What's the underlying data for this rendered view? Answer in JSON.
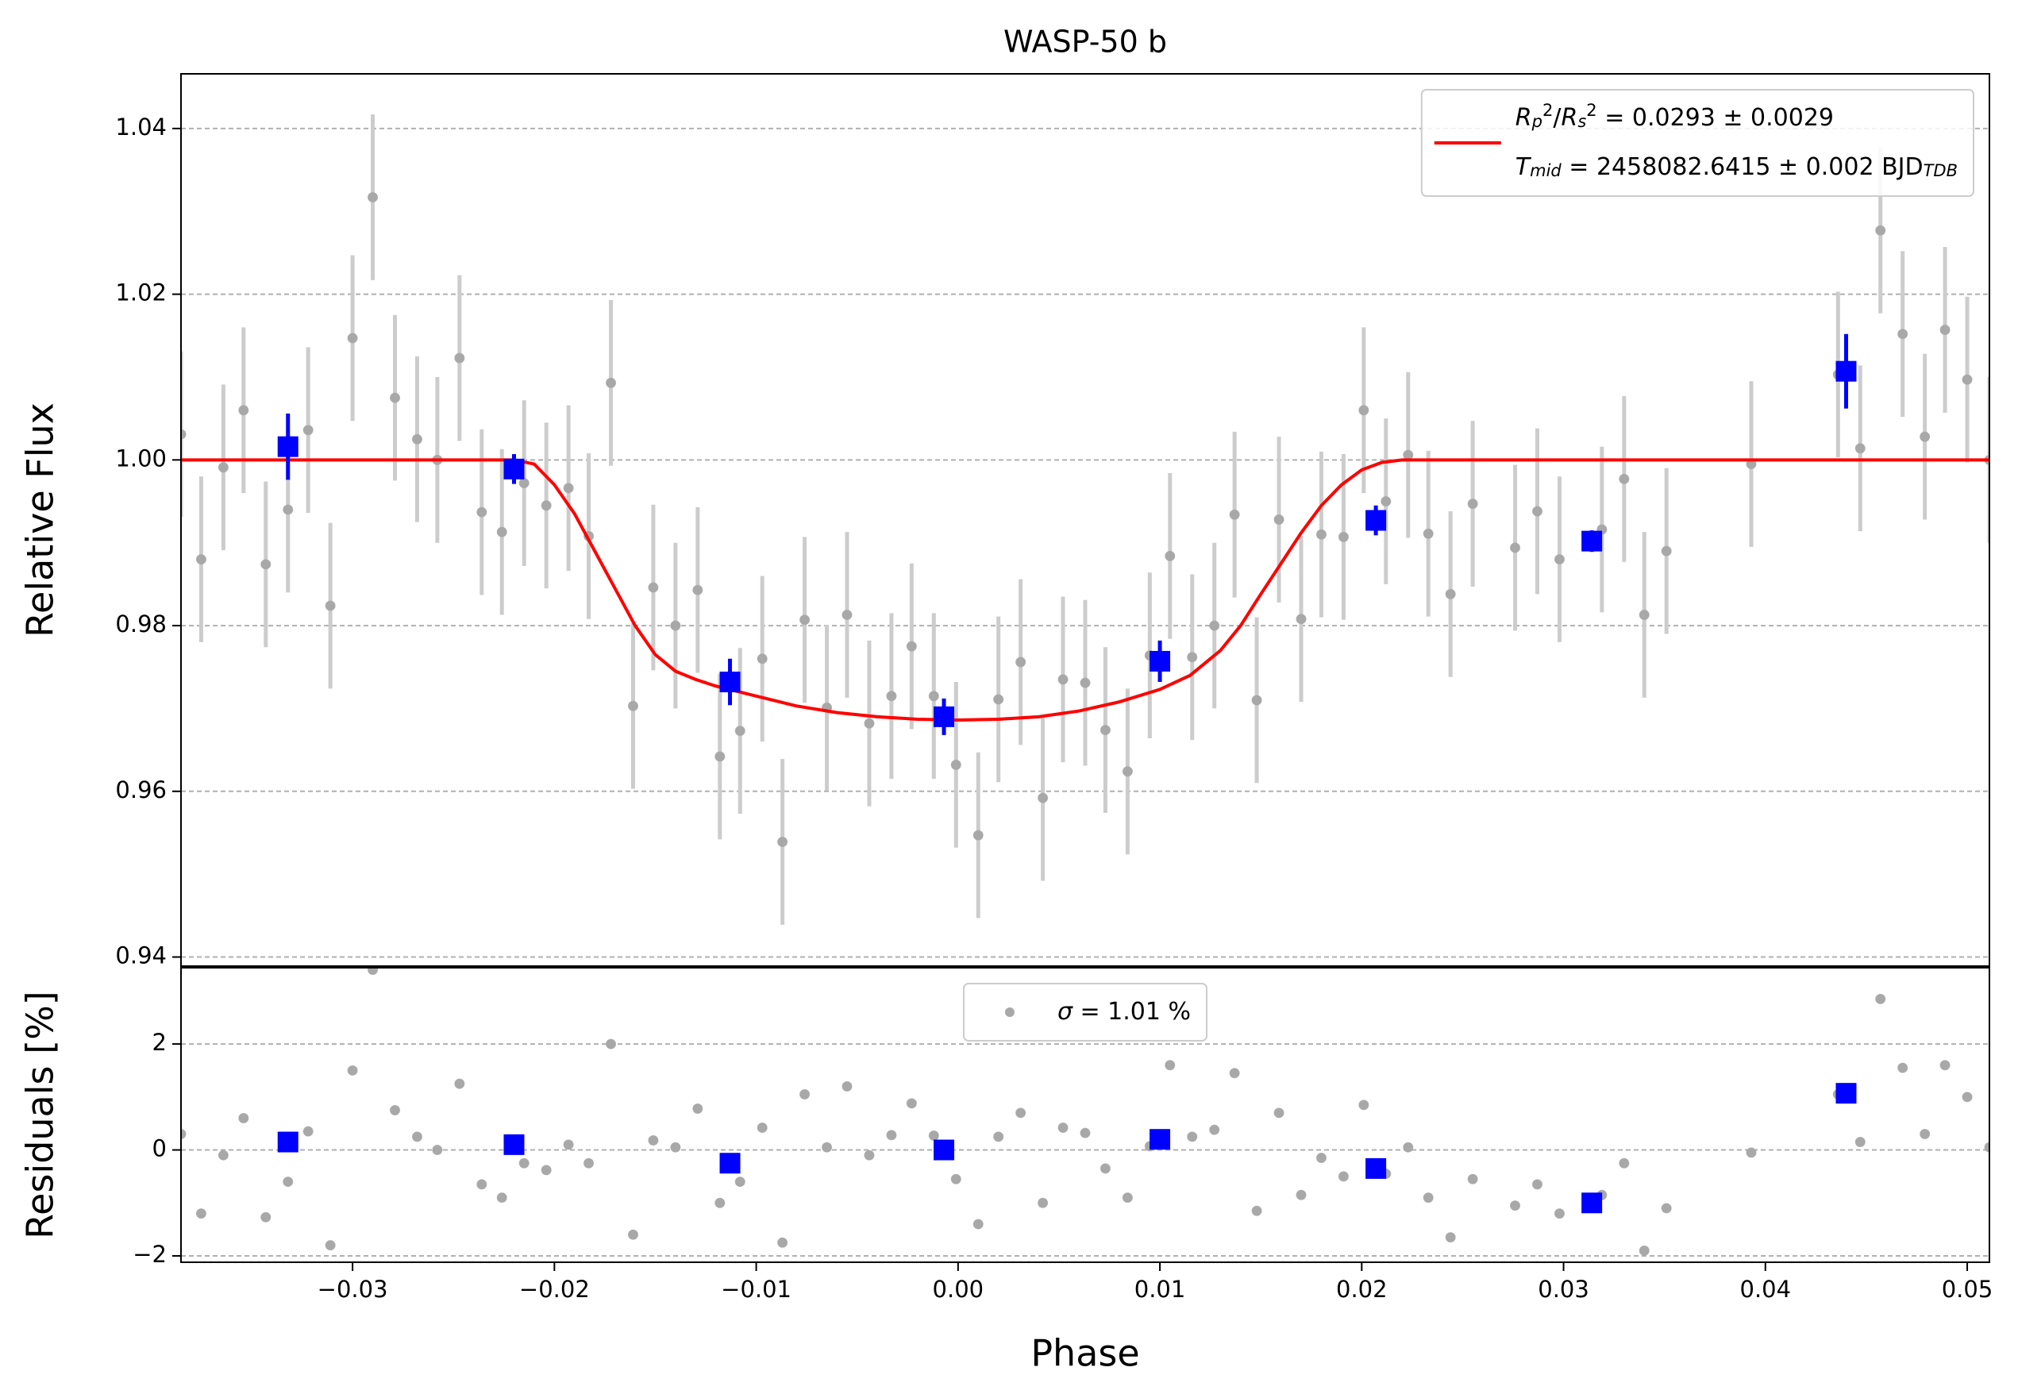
{
  "chart_data": [
    {
      "type": "scatter",
      "title": "WASP-50 b",
      "ylabel": "Relative Flux",
      "xlim": [
        -0.0385,
        0.0511
      ],
      "ylim": [
        0.9389,
        1.0466
      ],
      "yticks": [
        0.94,
        0.96,
        0.98,
        {
          "value": 1.0,
          "label": "1.00"
        },
        1.02,
        1.04
      ],
      "grid": true,
      "series": [
        {
          "marker": "circle",
          "color": "#a8a8a8",
          "ecolor": "#cccccc",
          "x": [
            -0.0385,
            -0.0375,
            -0.0364,
            -0.0354,
            -0.0343,
            -0.0332,
            -0.0322,
            -0.0311,
            -0.03,
            -0.029,
            -0.0279,
            -0.0268,
            -0.0258,
            -0.0247,
            -0.0236,
            -0.0226,
            -0.0215,
            -0.0204,
            -0.0193,
            -0.0183,
            -0.0172,
            -0.0161,
            -0.0151,
            -0.014,
            -0.0129,
            -0.0118,
            -0.0108,
            -0.0097,
            -0.0087,
            -0.0076,
            -0.0065,
            -0.0055,
            -0.0044,
            -0.0033,
            -0.0023,
            -0.0012,
            -0.0001,
            0.001,
            0.002,
            0.0031,
            0.0042,
            0.0052,
            0.0063,
            0.0073,
            0.0084,
            0.0095,
            0.0105,
            0.0116,
            0.0127,
            0.0137,
            0.0148,
            0.0159,
            0.017,
            0.018,
            0.0191,
            0.0201,
            0.0212,
            0.0223,
            0.0233,
            0.0244,
            0.0255,
            0.0276,
            0.0287,
            0.0298,
            0.0319,
            0.033,
            0.034,
            0.0351,
            0.0393,
            0.0436,
            0.0447,
            0.0457,
            0.0468,
            0.0479,
            0.0489,
            0.05,
            0.0511
          ],
          "values": [
            1.0031,
            0.988,
            0.9991,
            1.006,
            0.9874,
            0.994,
            1.0036,
            0.9824,
            1.0147,
            1.0317,
            1.0075,
            1.0025,
            1.0,
            1.0123,
            0.9937,
            0.9913,
            0.9972,
            0.9945,
            0.9966,
            0.9908,
            1.0093,
            0.9703,
            0.9846,
            0.98,
            0.9843,
            0.9642,
            0.9673,
            0.976,
            0.9539,
            0.9807,
            0.9701,
            0.9813,
            0.9682,
            0.9715,
            0.9775,
            0.9715,
            0.9632,
            0.9547,
            0.9711,
            0.9756,
            0.9592,
            0.9735,
            0.9731,
            0.9674,
            0.9624,
            0.9764,
            0.9884,
            0.9762,
            0.98,
            0.9934,
            0.971,
            0.9928,
            0.9808,
            0.991,
            0.9907,
            1.006,
            0.995,
            1.0006,
            0.9911,
            0.9838,
            0.9947,
            0.9894,
            0.9938,
            0.988,
            0.9916,
            0.9977,
            0.9813,
            0.989,
            0.9995,
            1.0103,
            1.0014,
            1.0277,
            1.0152,
            1.0028,
            1.0157,
            1.0097,
            1.0
          ],
          "errors": [
            0.01,
            0.01,
            0.01,
            0.01,
            0.01,
            0.01,
            0.01,
            0.01,
            0.01,
            0.01,
            0.01,
            0.01,
            0.01,
            0.01,
            0.01,
            0.01,
            0.01,
            0.01,
            0.01,
            0.01,
            0.01,
            0.01,
            0.01,
            0.01,
            0.01,
            0.01,
            0.01,
            0.01,
            0.01,
            0.01,
            0.01,
            0.01,
            0.01,
            0.01,
            0.01,
            0.01,
            0.01,
            0.01,
            0.01,
            0.01,
            0.01,
            0.01,
            0.01,
            0.01,
            0.01,
            0.01,
            0.01,
            0.01,
            0.01,
            0.01,
            0.01,
            0.01,
            0.01,
            0.01,
            0.01,
            0.01,
            0.01,
            0.01,
            0.01,
            0.01,
            0.01,
            0.01,
            0.01,
            0.01,
            0.01,
            0.01,
            0.01,
            0.01,
            0.01,
            0.01,
            0.01,
            0.01,
            0.01,
            0.01,
            0.01,
            0.01,
            0.01
          ]
        },
        {
          "marker": "line",
          "color": "#ff0000",
          "x": [
            -0.0385,
            -0.022,
            -0.021,
            -0.02,
            -0.019,
            -0.018,
            -0.017,
            -0.016,
            -0.015,
            -0.014,
            -0.013,
            -0.012,
            -0.01,
            -0.008,
            -0.006,
            -0.004,
            -0.002,
            0,
            0.002,
            0.004,
            0.006,
            0.008,
            0.01,
            0.0115,
            0.013,
            0.014,
            0.015,
            0.016,
            0.017,
            0.018,
            0.019,
            0.02,
            0.021,
            0.022,
            0.0511
          ],
          "values": [
            1.0,
            1.0,
            0.9995,
            0.997,
            0.9935,
            0.989,
            0.9845,
            0.98,
            0.9765,
            0.9745,
            0.9735,
            0.9727,
            0.9715,
            0.9703,
            0.9695,
            0.969,
            0.9687,
            0.9686,
            0.9687,
            0.969,
            0.9697,
            0.9708,
            0.9723,
            0.974,
            0.977,
            0.98,
            0.9838,
            0.9875,
            0.9912,
            0.9945,
            0.997,
            0.9988,
            0.9997,
            1.0,
            1.0
          ]
        },
        {
          "marker": "square",
          "color": "#0000ff",
          "ecolor": "#0000ff",
          "x": [
            -0.0332,
            -0.022,
            -0.0113,
            -0.0007,
            0.01,
            0.0207,
            0.0314,
            0.044
          ],
          "values": [
            1.0016,
            0.9989,
            0.9732,
            0.969,
            0.9757,
            0.9927,
            0.9902,
            1.0107
          ],
          "errors": [
            0.004,
            0.0018,
            0.0028,
            0.0022,
            0.0025,
            0.0018,
            0.0013,
            0.0045
          ]
        }
      ],
      "legend": {
        "loc": "upper right",
        "entries": [
          {
            "marker": "line",
            "color": "#ff0000",
            "lines": [
              [
                {
                  "text": "R",
                  "style": "italic"
                },
                {
                  "text": "p",
                  "style": "italic-sub"
                },
                {
                  "text": "2",
                  "style": "sup"
                },
                {
                  "text": "/",
                  "style": "normal"
                },
                {
                  "text": "R",
                  "style": "italic"
                },
                {
                  "text": "s",
                  "style": "italic-sub"
                },
                {
                  "text": "2",
                  "style": "sup"
                },
                {
                  "text": " = 0.0293 ± 0.0029",
                  "style": "normal"
                }
              ],
              [
                {
                  "text": "T",
                  "style": "italic"
                },
                {
                  "text": "mid",
                  "style": "italic-sub"
                },
                {
                  "text": " = 2458082.6415 ± 0.002 BJD",
                  "style": "normal"
                },
                {
                  "text": "TDB",
                  "style": "italic-sub"
                }
              ]
            ]
          }
        ]
      }
    },
    {
      "type": "scatter",
      "ylabel": "Residuals [%]",
      "xlabel": "Phase",
      "xlim": [
        -0.0385,
        0.0511
      ],
      "ylim": [
        -2.12,
        3.44
      ],
      "xticks": [
        {
          "value": -0.03,
          "label": "−0.03"
        },
        {
          "value": -0.02,
          "label": "−0.02"
        },
        {
          "value": -0.01,
          "label": "−0.01"
        },
        {
          "value": 0,
          "label": "0.00"
        },
        0.01,
        0.02,
        0.03,
        0.04,
        0.05
      ],
      "yticks": [
        {
          "value": -2,
          "label": "−2"
        },
        0,
        2
      ],
      "grid": true,
      "series": [
        {
          "marker": "circle",
          "color": "#a8a8a8",
          "x": [
            -0.0385,
            -0.0375,
            -0.0364,
            -0.0354,
            -0.0343,
            -0.0332,
            -0.0322,
            -0.0311,
            -0.03,
            -0.029,
            -0.0279,
            -0.0268,
            -0.0258,
            -0.0247,
            -0.0236,
            -0.0226,
            -0.0215,
            -0.0204,
            -0.0193,
            -0.0183,
            -0.0172,
            -0.0161,
            -0.0151,
            -0.014,
            -0.0129,
            -0.0118,
            -0.0108,
            -0.0097,
            -0.0087,
            -0.0076,
            -0.0065,
            -0.0055,
            -0.0044,
            -0.0033,
            -0.0023,
            -0.0012,
            -0.0001,
            0.001,
            0.002,
            0.0031,
            0.0042,
            0.0052,
            0.0063,
            0.0073,
            0.0084,
            0.0095,
            0.0105,
            0.0116,
            0.0127,
            0.0137,
            0.0148,
            0.0159,
            0.017,
            0.018,
            0.0191,
            0.0201,
            0.0212,
            0.0223,
            0.0233,
            0.0244,
            0.0255,
            0.0276,
            0.0287,
            0.0298,
            0.0319,
            0.033,
            0.034,
            0.0351,
            0.0393,
            0.0436,
            0.0447,
            0.0457,
            0.0468,
            0.0479,
            0.0489,
            0.05,
            0.0511
          ],
          "values": [
            0.3,
            -1.2,
            -0.1,
            0.6,
            -1.27,
            -0.6,
            0.35,
            -1.8,
            1.5,
            3.4,
            0.75,
            0.25,
            0.0,
            1.25,
            -0.65,
            -0.9,
            -0.25,
            -0.38,
            0.1,
            -0.25,
            2.0,
            -1.6,
            0.18,
            0.05,
            0.78,
            -1.0,
            -0.6,
            0.42,
            -1.75,
            1.05,
            0.05,
            1.2,
            -0.1,
            0.28,
            0.88,
            0.27,
            -0.55,
            -1.4,
            0.25,
            0.7,
            -1.0,
            0.42,
            0.32,
            -0.35,
            -0.9,
            0.07,
            1.6,
            0.25,
            0.38,
            1.45,
            -1.15,
            0.7,
            -0.85,
            -0.15,
            -0.5,
            0.85,
            -0.45,
            0.05,
            -0.9,
            -1.65,
            -0.55,
            -1.05,
            -0.65,
            -1.2,
            -0.85,
            -0.25,
            -1.9,
            -1.1,
            -0.05,
            1.05,
            0.15,
            2.85,
            1.55,
            0.3,
            1.6,
            1.0,
            0.05
          ]
        },
        {
          "marker": "square",
          "color": "#0000ff",
          "x": [
            -0.0332,
            -0.022,
            -0.0113,
            -0.0007,
            0.01,
            0.0207,
            0.0314,
            0.044
          ],
          "values": [
            0.15,
            0.1,
            -0.25,
            0.0,
            0.2,
            -0.35,
            -1.0,
            1.07
          ]
        }
      ],
      "legend": {
        "loc": "upper center",
        "entries": [
          {
            "marker": "circle",
            "color": "#a8a8a8",
            "lines": [
              [
                {
                  "text": "σ",
                  "style": "italic"
                },
                {
                  "text": " = 1.01 %",
                  "style": "normal"
                }
              ]
            ]
          }
        ]
      }
    }
  ]
}
